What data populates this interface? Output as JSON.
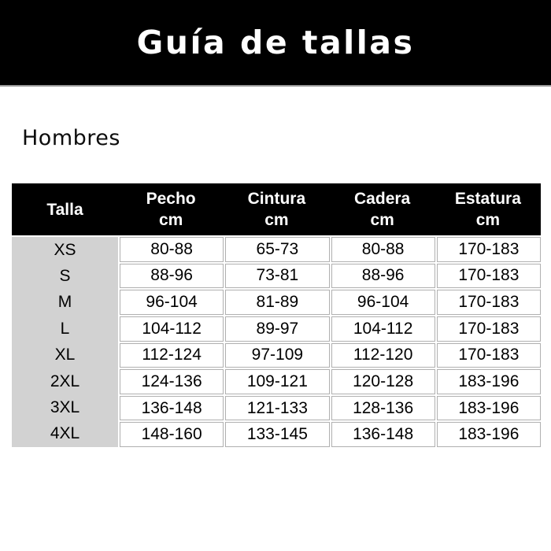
{
  "banner": {
    "title": "Guía de tallas"
  },
  "section": {
    "label": "Hombres"
  },
  "table": {
    "columns": [
      {
        "name": "Talla",
        "unit": ""
      },
      {
        "name": "Pecho",
        "unit": "cm"
      },
      {
        "name": "Cintura",
        "unit": "cm"
      },
      {
        "name": "Cadera",
        "unit": "cm"
      },
      {
        "name": "Estatura",
        "unit": "cm"
      }
    ],
    "rows": [
      {
        "talla": "XS",
        "pecho": "80-88",
        "cintura": "65-73",
        "cadera": "80-88",
        "estatura": "170-183"
      },
      {
        "talla": "S",
        "pecho": "88-96",
        "cintura": "73-81",
        "cadera": "88-96",
        "estatura": "170-183"
      },
      {
        "talla": "M",
        "pecho": "96-104",
        "cintura": "81-89",
        "cadera": "96-104",
        "estatura": "170-183"
      },
      {
        "talla": "L",
        "pecho": "104-112",
        "cintura": "89-97",
        "cadera": "104-112",
        "estatura": "170-183"
      },
      {
        "talla": "XL",
        "pecho": "112-124",
        "cintura": "97-109",
        "cadera": "112-120",
        "estatura": "170-183"
      },
      {
        "talla": "2XL",
        "pecho": "124-136",
        "cintura": "109-121",
        "cadera": "120-128",
        "estatura": "183-196"
      },
      {
        "talla": "3XL",
        "pecho": "136-148",
        "cintura": "121-133",
        "cadera": "128-136",
        "estatura": "183-196"
      },
      {
        "talla": "4XL",
        "pecho": "148-160",
        "cintura": "133-145",
        "cadera": "136-148",
        "estatura": "183-196"
      }
    ]
  },
  "colors": {
    "banner_bg": "#000000",
    "header_bg": "#000000",
    "header_text": "#ffffff",
    "label_col_bg": "#d2d2d2",
    "cell_border": "#b0b0b0",
    "text": "#000000"
  }
}
